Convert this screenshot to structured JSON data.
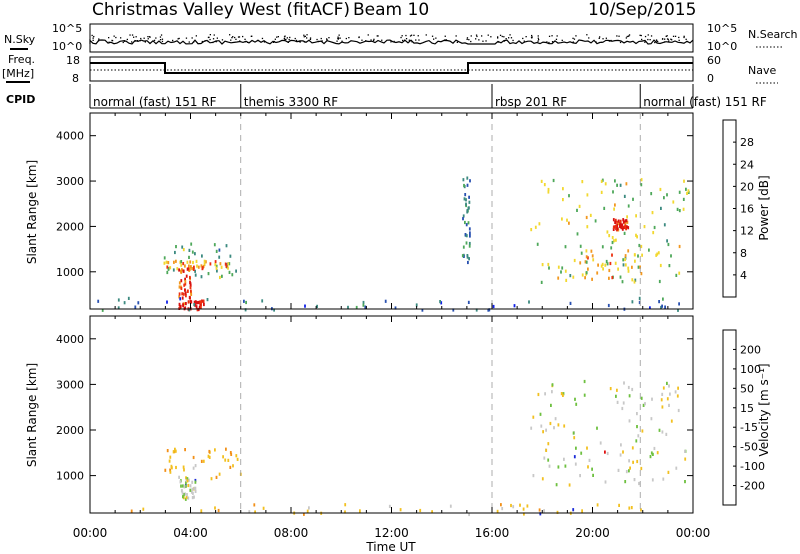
{
  "header": {
    "site": "Christmas Valley West (fitACF)",
    "beam": "Beam 10",
    "date": "10/Sep/2015"
  },
  "side_labels": {
    "nsky": "N.Sky",
    "freq": "Freq.",
    "freq_unit": "[MHz]",
    "cpid": "CPID",
    "nsearch": "N.Search",
    "nave": "Nave"
  },
  "sky_axis": {
    "left_ticks": [
      "10^5",
      "10^0"
    ],
    "right_ticks": [
      "10^5",
      "10^0"
    ]
  },
  "freq_axis": {
    "left_ticks": [
      "18",
      "8"
    ],
    "right_ticks": [
      "60",
      "0"
    ]
  },
  "cpid_segments": [
    {
      "label": "normal (fast) 151 RF",
      "start": 0,
      "end": 6
    },
    {
      "label": "themis 3300 RF",
      "start": 6,
      "end": 16
    },
    {
      "label": "rbsp 201 RF",
      "start": 16,
      "end": 21.9
    },
    {
      "label": "normal (fast) 151 RF",
      "start": 21.9,
      "end": 24
    }
  ],
  "time_axis": {
    "label": "Time UT",
    "ticks": [
      "00:00",
      "04:00",
      "08:00",
      "12:00",
      "16:00",
      "20:00",
      "00:00"
    ],
    "mode_change_hours": [
      6,
      16,
      21.9
    ]
  },
  "chart_data": [
    {
      "type": "heatmap",
      "panel": "power",
      "xlabel": "Time UT",
      "ylabel": "Slant Range [km]",
      "xlim": [
        0,
        24
      ],
      "ylim": [
        180,
        4500
      ],
      "yticks": [
        1000,
        2000,
        3000,
        4000
      ],
      "colorbar": {
        "label": "Power [dB]",
        "ticks": [
          4,
          8,
          12,
          16,
          20,
          24,
          28
        ],
        "range": [
          0,
          32
        ],
        "colors": [
          "#1020e8",
          "#2850b0",
          "#3c8a80",
          "#4ea85a",
          "#f2d830",
          "#f29820",
          "#ec3010",
          "#d81010"
        ]
      },
      "echo_regions": [
        {
          "t": [
            2.9,
            6.0
          ],
          "r": [
            900,
            1650
          ],
          "level": 12
        },
        {
          "t": [
            3.0,
            5.5
          ],
          "r": [
            1050,
            1300
          ],
          "level": 22
        },
        {
          "t": [
            3.5,
            4.0
          ],
          "r": [
            300,
            1100
          ],
          "level": 26
        },
        {
          "t": [
            3.5,
            4.5
          ],
          "r": [
            200,
            400
          ],
          "level": 30
        },
        {
          "t": [
            0,
            24
          ],
          "r": [
            180,
            450
          ],
          "level": 8
        },
        {
          "t": [
            14.8,
            15.1
          ],
          "r": [
            1100,
            3100
          ],
          "level": 10
        },
        {
          "t": [
            17.5,
            23.8
          ],
          "r": [
            800,
            3100
          ],
          "level": 16
        },
        {
          "t": [
            20.8,
            21.4
          ],
          "r": [
            1950,
            2200
          ],
          "level": 28
        },
        {
          "t": [
            19.5,
            22.0
          ],
          "r": [
            800,
            1500
          ],
          "level": 20
        }
      ]
    },
    {
      "type": "heatmap",
      "panel": "velocity",
      "xlabel": "Time UT",
      "ylabel": "Slant Range [km]",
      "xlim": [
        0,
        24
      ],
      "ylim": [
        180,
        4500
      ],
      "yticks": [
        1000,
        2000,
        3000,
        4000
      ],
      "colorbar": {
        "label": "Velocity [m s⁻¹]",
        "ticks": [
          200,
          100,
          50,
          15,
          -15,
          -50,
          -100,
          -200
        ],
        "colors": [
          "#1a2ad8",
          "#3a70b8",
          "#2e8a50",
          "#6ec040",
          "#c8c8c8",
          "#f2c020",
          "#f29018",
          "#f06010",
          "#e01010"
        ]
      },
      "echo_regions": [
        {
          "t": [
            2.9,
            6.0
          ],
          "r": [
            950,
            1650
          ],
          "velocity": -40
        },
        {
          "t": [
            3.5,
            4.2
          ],
          "r": [
            500,
            1000
          ],
          "velocity": 0
        },
        {
          "t": [
            0,
            24
          ],
          "r": [
            180,
            400
          ],
          "velocity": -30
        },
        {
          "t": [
            17.5,
            23.8
          ],
          "r": [
            800,
            3100
          ],
          "velocity": 0
        }
      ]
    }
  ]
}
